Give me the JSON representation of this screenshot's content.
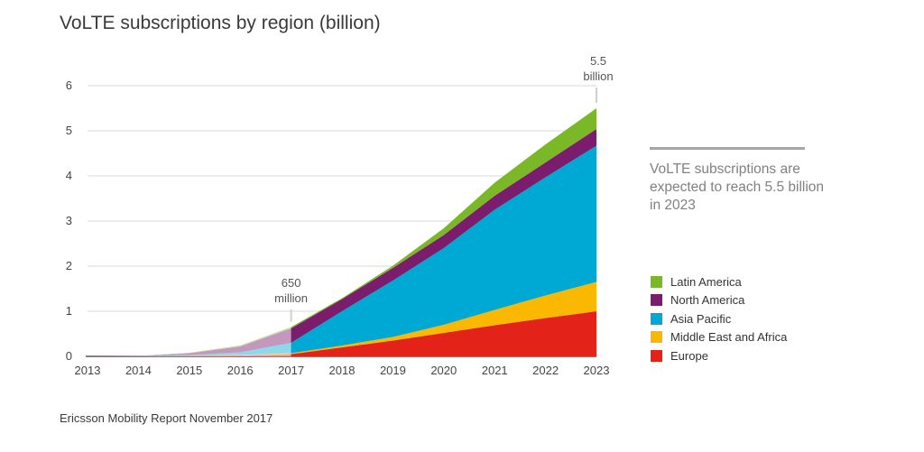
{
  "title": "VoLTE subscriptions by region (billion)",
  "source": "Ericsson Mobility Report November 2017",
  "callout": "VoLTE subscriptions are expected to reach 5.5 billion in 2023",
  "annotations": {
    "a2017": [
      "650",
      "million"
    ],
    "a2023": [
      "5.5",
      "billion"
    ]
  },
  "chart_data": {
    "type": "area",
    "stacked": true,
    "x": [
      2013,
      2014,
      2015,
      2016,
      2017,
      2018,
      2019,
      2020,
      2021,
      2022,
      2023
    ],
    "ylim": [
      0,
      6
    ],
    "yticks": [
      0,
      1,
      2,
      3,
      4,
      5,
      6
    ],
    "grid": true,
    "legend_position": "right",
    "series": [
      {
        "name": "Europe",
        "color": "#e32219",
        "values": [
          0,
          0,
          0.01,
          0.02,
          0.05,
          0.2,
          0.35,
          0.52,
          0.69,
          0.85,
          1.0
        ]
      },
      {
        "name": "Middle East and Africa",
        "color": "#fab800",
        "values": [
          0,
          0,
          0,
          0.01,
          0.02,
          0.04,
          0.08,
          0.18,
          0.34,
          0.5,
          0.65
        ]
      },
      {
        "name": "Asia Pacific",
        "color": "#00a9d4",
        "values": [
          0,
          0,
          0.02,
          0.06,
          0.23,
          0.76,
          1.25,
          1.7,
          2.22,
          2.62,
          3.02
        ]
      },
      {
        "name": "North America",
        "color": "#7b1c6c",
        "values": [
          0,
          0.01,
          0.04,
          0.13,
          0.32,
          0.27,
          0.28,
          0.29,
          0.31,
          0.33,
          0.37
        ]
      },
      {
        "name": "Latin America",
        "color": "#7ab828",
        "values": [
          0,
          0,
          0.01,
          0.02,
          0.03,
          0.02,
          0.05,
          0.15,
          0.29,
          0.4,
          0.46
        ]
      }
    ],
    "legend_order": [
      "Latin America",
      "North America",
      "Asia Pacific",
      "Middle East and Africa",
      "Europe"
    ]
  }
}
